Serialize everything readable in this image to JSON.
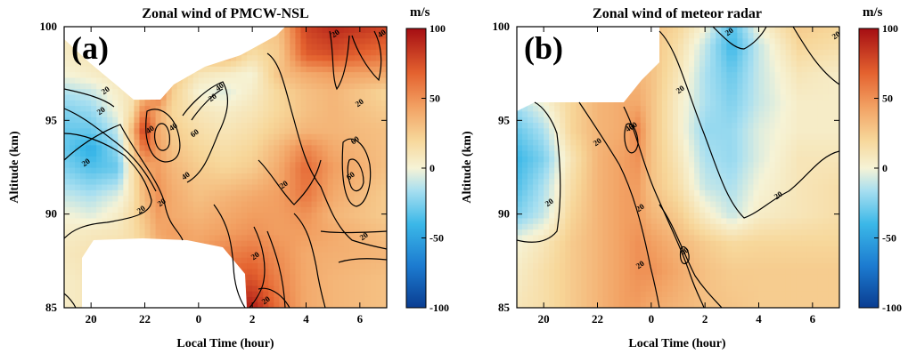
{
  "chart_data": [
    {
      "type": "heatmap",
      "panel_label": "(a)",
      "title": "Zonal wind of PMCW-NSL",
      "xlabel": "Local Time (hour)",
      "ylabel": "Altitude (km)",
      "xlim": [
        19,
        31
      ],
      "ylim": [
        85,
        100
      ],
      "xticks": [
        20,
        22,
        24,
        26,
        28,
        30
      ],
      "xtick_labels": [
        "20",
        "22",
        "0",
        "2",
        "4",
        "6"
      ],
      "yticks": [
        85,
        90,
        95,
        100
      ],
      "ytick_labels": [
        "85",
        "90",
        "95",
        "100"
      ],
      "colorbar": {
        "unit": "m/s",
        "range": [
          -100,
          100
        ],
        "ticks": [
          100,
          50,
          0,
          -50,
          -100
        ],
        "tick_labels": [
          "100",
          "50",
          "0",
          "-50",
          "-100"
        ]
      },
      "grid": [
        {
          "y": 85.0,
          "u": [
            5,
            10,
            15,
            20,
            25,
            30,
            35,
            50,
            85,
            95,
            60,
            40,
            35,
            30
          ]
        },
        {
          "y": 86.5,
          "u": [
            5,
            10,
            15,
            20,
            25,
            30,
            38,
            50,
            70,
            75,
            55,
            40,
            35,
            30
          ]
        },
        {
          "y": 88.0,
          "u": [
            8,
            12,
            15,
            15,
            22,
            35,
            40,
            45,
            55,
            60,
            50,
            40,
            38,
            35
          ]
        },
        {
          "y": 89.0,
          "u": [
            5,
            8,
            10,
            15,
            25,
            40,
            45,
            40,
            45,
            50,
            45,
            45,
            40,
            30
          ]
        },
        {
          "y": 90.0,
          "u": [
            0,
            -5,
            5,
            15,
            30,
            45,
            40,
            35,
            40,
            45,
            45,
            50,
            35,
            25
          ]
        },
        {
          "y": 91.0,
          "u": [
            -10,
            -15,
            -5,
            10,
            35,
            50,
            40,
            30,
            35,
            40,
            45,
            60,
            40,
            25
          ]
        },
        {
          "y": 92.5,
          "u": [
            -25,
            -35,
            -30,
            10,
            40,
            45,
            35,
            25,
            20,
            25,
            40,
            65,
            45,
            30
          ]
        },
        {
          "y": 93.5,
          "u": [
            -30,
            -45,
            -20,
            20,
            65,
            45,
            30,
            20,
            15,
            20,
            35,
            55,
            40,
            30
          ]
        },
        {
          "y": 94.5,
          "u": [
            -30,
            -30,
            -10,
            30,
            85,
            40,
            25,
            15,
            10,
            15,
            25,
            35,
            35,
            30
          ]
        },
        {
          "y": 95.5,
          "u": [
            -25,
            -20,
            0,
            15,
            60,
            40,
            20,
            10,
            5,
            10,
            20,
            30,
            35,
            25
          ]
        },
        {
          "y": 96.5,
          "u": [
            -15,
            -10,
            5,
            10,
            30,
            60,
            25,
            0,
            -5,
            5,
            20,
            30,
            35,
            20
          ]
        },
        {
          "y": 97.5,
          "u": [
            0,
            5,
            10,
            15,
            20,
            30,
            30,
            10,
            5,
            0,
            30,
            40,
            45,
            40
          ]
        },
        {
          "y": 98.5,
          "u": [
            5,
            10,
            15,
            20,
            25,
            30,
            30,
            30,
            35,
            15,
            25,
            70,
            75,
            60
          ]
        },
        {
          "y": 100.0,
          "u": [
            10,
            15,
            20,
            25,
            30,
            30,
            30,
            35,
            40,
            30,
            30,
            80,
            90,
            80
          ]
        }
      ],
      "grid_x": [
        19,
        20,
        21,
        21.5,
        22,
        22.5,
        23,
        24,
        25,
        26,
        27,
        28,
        29,
        31
      ],
      "contour_levels": [
        -40,
        -20,
        20,
        40,
        60
      ],
      "contour_labels": [
        "20",
        "20",
        "20",
        "20",
        "20",
        "20",
        "40",
        "40",
        "40",
        "40",
        "60",
        "60",
        "60",
        "20",
        "20",
        "20",
        "20",
        "20",
        "40",
        "20"
      ]
    },
    {
      "type": "heatmap",
      "panel_label": "(b)",
      "title": "Zonal wind of meteor radar",
      "xlabel": "Local Time (hour)",
      "ylabel": "Altitude (km)",
      "xlim": [
        19,
        31
      ],
      "ylim": [
        85,
        100
      ],
      "xticks": [
        20,
        22,
        24,
        26,
        28,
        30
      ],
      "xtick_labels": [
        "20",
        "22",
        "0",
        "2",
        "4",
        "6"
      ],
      "yticks": [
        85,
        90,
        95,
        100
      ],
      "ytick_labels": [
        "85",
        "90",
        "95",
        "100"
      ],
      "colorbar": {
        "unit": "m/s",
        "range": [
          -100,
          100
        ],
        "ticks": [
          100,
          50,
          0,
          -50,
          -100
        ],
        "tick_labels": [
          "100",
          "50",
          "0",
          "-50",
          "-100"
        ]
      },
      "grid": [
        {
          "y": 85.0,
          "u": [
            10,
            15,
            25,
            35,
            45,
            45,
            40,
            35,
            30,
            28,
            25,
            25,
            25
          ]
        },
        {
          "y": 87.0,
          "u": [
            5,
            15,
            25,
            35,
            45,
            50,
            50,
            40,
            30,
            25,
            25,
            25,
            25
          ]
        },
        {
          "y": 88.5,
          "u": [
            0,
            10,
            25,
            35,
            45,
            50,
            45,
            35,
            25,
            18,
            20,
            20,
            20
          ]
        },
        {
          "y": 90.0,
          "u": [
            -25,
            -10,
            20,
            35,
            45,
            45,
            35,
            25,
            5,
            -10,
            5,
            10,
            15
          ]
        },
        {
          "y": 91.5,
          "u": [
            -35,
            -15,
            15,
            35,
            45,
            45,
            30,
            15,
            -10,
            -15,
            0,
            10,
            15
          ]
        },
        {
          "y": 93.0,
          "u": [
            -40,
            -25,
            10,
            35,
            45,
            50,
            30,
            10,
            -15,
            -20,
            -5,
            10,
            10
          ]
        },
        {
          "y": 94.5,
          "u": [
            -30,
            -15,
            20,
            35,
            40,
            55,
            30,
            5,
            -20,
            -20,
            -5,
            5,
            5
          ]
        },
        {
          "y": 96.0,
          "u": [
            -15,
            0,
            20,
            35,
            40,
            40,
            30,
            5,
            -15,
            -25,
            -10,
            5,
            5
          ]
        },
        {
          "y": 97.5,
          "u": [
            5,
            10,
            20,
            30,
            35,
            35,
            30,
            10,
            -15,
            -30,
            -10,
            10,
            5
          ]
        },
        {
          "y": 99.0,
          "u": [
            10,
            15,
            20,
            25,
            30,
            30,
            30,
            15,
            -10,
            -40,
            -10,
            20,
            15
          ]
        },
        {
          "y": 100.0,
          "u": [
            10,
            15,
            20,
            25,
            30,
            30,
            30,
            20,
            0,
            -35,
            0,
            25,
            20
          ]
        }
      ],
      "grid_x": [
        19,
        20,
        21,
        22,
        23,
        23.5,
        24,
        25,
        26,
        27,
        28,
        29.5,
        31
      ],
      "contour_levels": [
        -40,
        -20,
        20,
        40,
        60
      ],
      "contour_labels": [
        "20",
        "20",
        "20",
        "40",
        "60",
        "20",
        "40",
        "20",
        "20",
        "20",
        "20"
      ]
    }
  ]
}
